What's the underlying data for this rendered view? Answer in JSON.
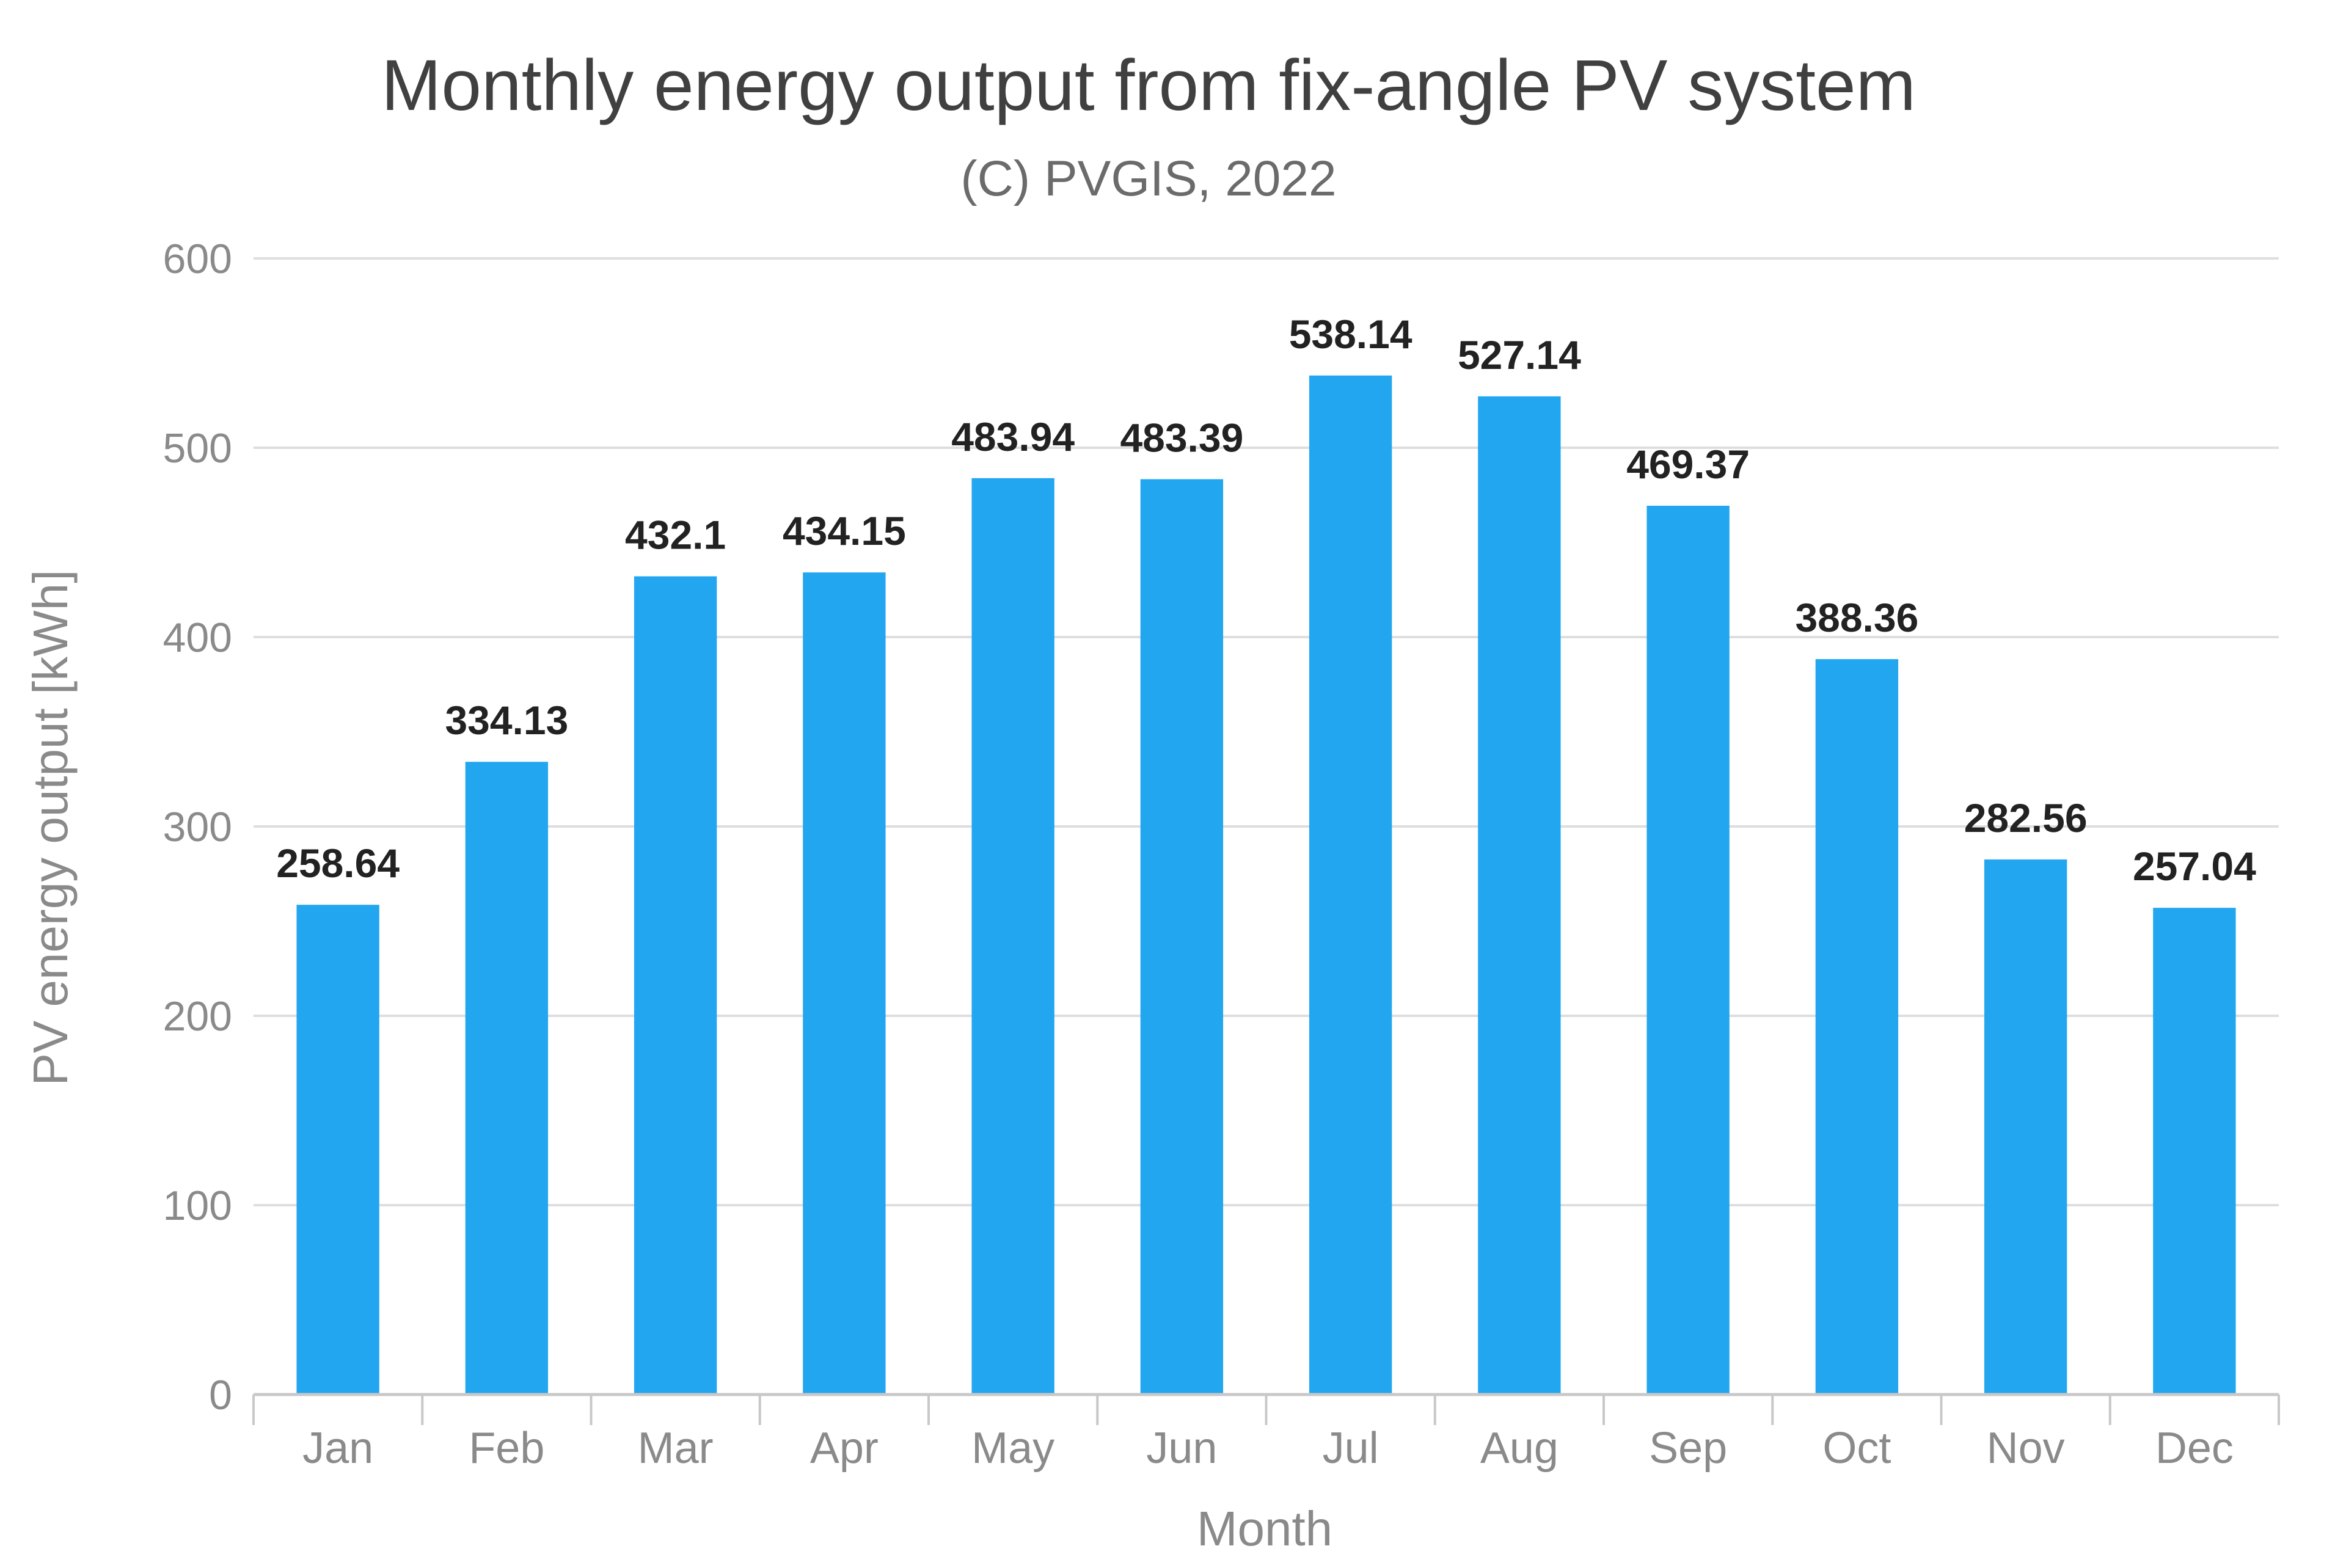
{
  "chart_data": {
    "type": "bar",
    "title": "Monthly energy output from fix-angle PV system",
    "subtitle": "(C) PVGIS, 2022",
    "xlabel": "Month",
    "ylabel": "PV energy output [kWh]",
    "categories": [
      "Jan",
      "Feb",
      "Mar",
      "Apr",
      "May",
      "Jun",
      "Jul",
      "Aug",
      "Sep",
      "Oct",
      "Nov",
      "Dec"
    ],
    "values": [
      258.64,
      334.13,
      432.1,
      434.15,
      483.94,
      483.39,
      538.14,
      527.14,
      469.37,
      388.36,
      282.56,
      257.04
    ],
    "data_labels": [
      "258.64",
      "334.13",
      "432.1",
      "434.15",
      "483.94",
      "483.39",
      "538.14",
      "527.14",
      "469.37",
      "388.36",
      "282.56",
      "257.04"
    ],
    "ylim": [
      0,
      600
    ],
    "yticks": [
      0,
      100,
      200,
      300,
      400,
      500,
      600
    ],
    "ytick_labels": [
      "0",
      "100",
      "200",
      "300",
      "400",
      "500",
      "600"
    ],
    "grid": true,
    "legend": "none",
    "colors": {
      "bar": "#23a6f0",
      "grid": "#dedede",
      "axis": "#c8c8c8"
    }
  }
}
